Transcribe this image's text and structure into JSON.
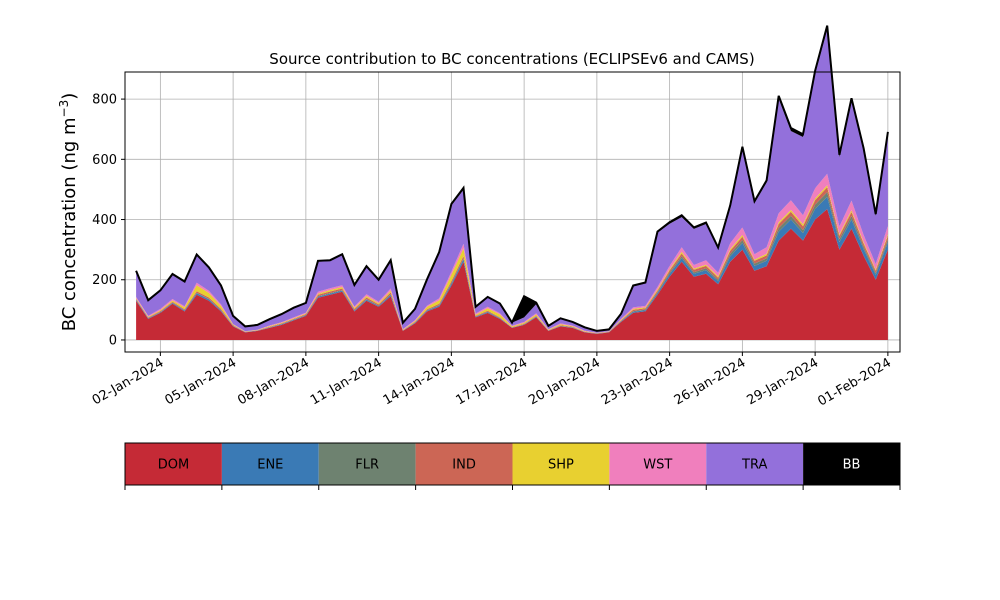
{
  "chart_data": {
    "type": "area",
    "title": "Source contribution to BC concentrations (ECLIPSEv6 and CAMS)",
    "ylabel": "BC concentration (ng m",
    "ylabel_superscript": "−3",
    "ylabel_close": ")",
    "xlabel": "",
    "ylim": [
      -40,
      890
    ],
    "xlim": [
      "2023-12-31T13:00",
      "2024-02-01T12:00"
    ],
    "yticks": [
      0,
      200,
      400,
      600,
      800
    ],
    "xticks": [
      "2024-01-02",
      "2024-01-05",
      "2024-01-08",
      "2024-01-11",
      "2024-01-14",
      "2024-01-17",
      "2024-01-20",
      "2024-01-23",
      "2024-01-26",
      "2024-01-29",
      "2024-02-01"
    ],
    "xtick_labels": [
      "02-Jan-2024",
      "05-Jan-2024",
      "08-Jan-2024",
      "11-Jan-2024",
      "14-Jan-2024",
      "17-Jan-2024",
      "20-Jan-2024",
      "23-Jan-2024",
      "26-Jan-2024",
      "29-Jan-2024",
      "01-Feb-2024"
    ],
    "grid": true,
    "legend_position": "below chart",
    "categories": [
      "DOM",
      "ENE",
      "FLR",
      "IND",
      "SHP",
      "WST",
      "TRA",
      "BB"
    ],
    "colors": [
      "#c52a36",
      "#3a7ab5",
      "#6e8270",
      "#cc6655",
      "#e8d030",
      "#f07fbd",
      "#9370db",
      "#000000"
    ],
    "x": [
      "2024-01-01T00:00",
      "2024-01-01T12:00",
      "2024-01-02T00:00",
      "2024-01-02T12:00",
      "2024-01-03T00:00",
      "2024-01-03T12:00",
      "2024-01-04T00:00",
      "2024-01-04T12:00",
      "2024-01-05T00:00",
      "2024-01-05T12:00",
      "2024-01-06T00:00",
      "2024-01-06T12:00",
      "2024-01-07T00:00",
      "2024-01-07T12:00",
      "2024-01-08T00:00",
      "2024-01-08T12:00",
      "2024-01-09T00:00",
      "2024-01-09T12:00",
      "2024-01-10T00:00",
      "2024-01-10T12:00",
      "2024-01-11T00:00",
      "2024-01-11T12:00",
      "2024-01-12T00:00",
      "2024-01-12T12:00",
      "2024-01-13T00:00",
      "2024-01-13T12:00",
      "2024-01-14T00:00",
      "2024-01-14T12:00",
      "2024-01-15T00:00",
      "2024-01-15T12:00",
      "2024-01-16T00:00",
      "2024-01-16T12:00",
      "2024-01-17T00:00",
      "2024-01-17T12:00",
      "2024-01-18T00:00",
      "2024-01-18T12:00",
      "2024-01-19T00:00",
      "2024-01-19T12:00",
      "2024-01-20T00:00",
      "2024-01-20T12:00",
      "2024-01-21T00:00",
      "2024-01-21T12:00",
      "2024-01-22T00:00",
      "2024-01-22T12:00",
      "2024-01-23T00:00",
      "2024-01-23T12:00",
      "2024-01-24T00:00",
      "2024-01-24T12:00",
      "2024-01-25T00:00",
      "2024-01-25T12:00",
      "2024-01-26T00:00",
      "2024-01-26T12:00",
      "2024-01-27T00:00",
      "2024-01-27T12:00",
      "2024-01-28T00:00",
      "2024-01-28T12:00",
      "2024-01-29T00:00",
      "2024-01-29T12:00",
      "2024-01-30T00:00",
      "2024-01-30T12:00",
      "2024-01-31T00:00",
      "2024-01-31T12:00",
      "2024-02-01T00:00"
    ],
    "series": [
      {
        "name": "DOM",
        "values": [
          130,
          70,
          90,
          120,
          95,
          150,
          130,
          95,
          45,
          25,
          30,
          40,
          50,
          65,
          80,
          140,
          150,
          160,
          95,
          130,
          110,
          145,
          30,
          55,
          95,
          110,
          180,
          260,
          75,
          90,
          70,
          40,
          50,
          75,
          30,
          45,
          40,
          25,
          20,
          25,
          60,
          90,
          95,
          150,
          210,
          260,
          210,
          220,
          185,
          260,
          300,
          230,
          245,
          330,
          370,
          330,
          400,
          435,
          300,
          370,
          280,
          200,
          300
        ]
      },
      {
        "name": "ENE",
        "values": [
          3,
          2,
          2,
          3,
          3,
          5,
          5,
          3,
          1,
          1,
          1,
          1,
          2,
          2,
          2,
          4,
          4,
          4,
          3,
          4,
          3,
          5,
          1,
          2,
          3,
          4,
          6,
          8,
          2,
          3,
          2,
          1,
          1,
          2,
          1,
          1,
          1,
          1,
          1,
          1,
          2,
          4,
          4,
          6,
          9,
          12,
          10,
          12,
          10,
          18,
          22,
          16,
          18,
          30,
          30,
          25,
          35,
          40,
          25,
          30,
          22,
          16,
          25
        ]
      },
      {
        "name": "FLR",
        "values": [
          1,
          1,
          1,
          1,
          1,
          2,
          1,
          1,
          1,
          0,
          0,
          1,
          1,
          1,
          1,
          1,
          2,
          2,
          1,
          2,
          1,
          2,
          0,
          1,
          1,
          2,
          3,
          3,
          1,
          1,
          1,
          0,
          1,
          1,
          0,
          1,
          1,
          0,
          0,
          0,
          1,
          2,
          2,
          3,
          5,
          6,
          5,
          6,
          5,
          8,
          10,
          8,
          8,
          12,
          12,
          10,
          14,
          16,
          10,
          12,
          8,
          6,
          10
        ]
      },
      {
        "name": "IND",
        "values": [
          3,
          2,
          3,
          3,
          3,
          5,
          5,
          4,
          2,
          1,
          1,
          2,
          2,
          2,
          3,
          5,
          5,
          5,
          4,
          5,
          4,
          6,
          1,
          2,
          3,
          4,
          6,
          8,
          2,
          3,
          2,
          1,
          2,
          2,
          1,
          2,
          2,
          1,
          1,
          1,
          2,
          4,
          4,
          5,
          7,
          9,
          8,
          8,
          7,
          10,
          11,
          9,
          10,
          13,
          14,
          13,
          15,
          16,
          11,
          13,
          10,
          8,
          12
        ]
      },
      {
        "name": "SHP",
        "values": [
          2,
          2,
          3,
          4,
          6,
          20,
          15,
          10,
          2,
          1,
          1,
          2,
          2,
          2,
          2,
          4,
          5,
          5,
          4,
          5,
          4,
          6,
          2,
          3,
          8,
          12,
          22,
          25,
          4,
          8,
          10,
          3,
          3,
          5,
          2,
          3,
          2,
          2,
          1,
          1,
          2,
          3,
          3,
          4,
          4,
          6,
          4,
          4,
          4,
          5,
          6,
          4,
          5,
          6,
          6,
          6,
          6,
          7,
          5,
          6,
          5,
          4,
          6
        ]
      },
      {
        "name": "WST",
        "values": [
          4,
          3,
          4,
          5,
          4,
          8,
          7,
          5,
          2,
          1,
          1,
          2,
          2,
          3,
          3,
          6,
          6,
          6,
          4,
          6,
          5,
          7,
          2,
          3,
          4,
          6,
          10,
          15,
          4,
          5,
          4,
          2,
          3,
          4,
          2,
          3,
          2,
          2,
          1,
          1,
          3,
          5,
          5,
          8,
          11,
          15,
          12,
          15,
          12,
          20,
          25,
          18,
          22,
          30,
          32,
          30,
          34,
          38,
          26,
          32,
          24,
          18,
          26
        ]
      },
      {
        "name": "TRA",
        "values": [
          85,
          50,
          60,
          80,
          80,
          90,
          75,
          60,
          25,
          15,
          15,
          20,
          25,
          30,
          30,
          100,
          90,
          100,
          70,
          90,
          70,
          90,
          20,
          35,
          85,
          150,
          220,
          180,
          20,
          30,
          30,
          10,
          15,
          30,
          10,
          15,
          10,
          10,
          5,
          5,
          15,
          70,
          75,
          180,
          140,
          100,
          120,
          120,
          80,
          120,
          260,
          170,
          215,
          380,
          230,
          260,
          380,
          480,
          230,
          330,
          280,
          160,
          300
        ]
      },
      {
        "name": "BB",
        "values": [
          2,
          2,
          2,
          3,
          2,
          4,
          3,
          3,
          2,
          1,
          1,
          1,
          2,
          2,
          2,
          3,
          3,
          3,
          2,
          3,
          3,
          4,
          1,
          2,
          3,
          4,
          5,
          6,
          2,
          3,
          2,
          1,
          70,
          5,
          1,
          2,
          2,
          1,
          1,
          1,
          2,
          3,
          3,
          4,
          5,
          6,
          5,
          5,
          4,
          6,
          8,
          6,
          7,
          10,
          10,
          9,
          10,
          12,
          8,
          10,
          8,
          6,
          12
        ]
      }
    ]
  }
}
